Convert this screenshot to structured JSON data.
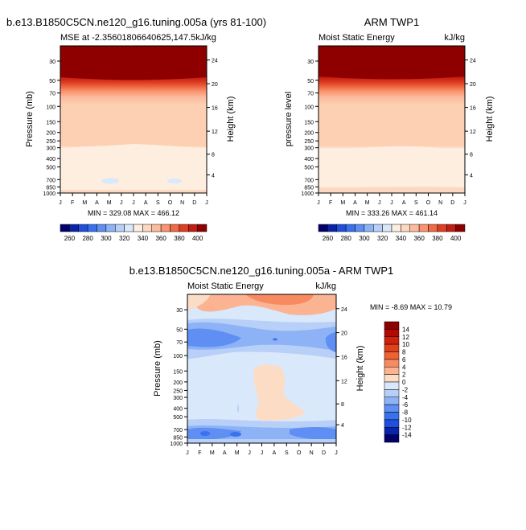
{
  "figure": {
    "panels": [
      {
        "id": "model",
        "main_title": "b.e13.B1850C5CN.ne120_g16.tuning.005a (yrs 81-100)",
        "left_string": "MSE at -2.35601806640625,147.5kJ/kg",
        "right_string": "",
        "ylabel": "Pressure (mb)",
        "ylabel_right": "Height (km)",
        "minmax": "MIN = 329.08 MAX = 466.12"
      },
      {
        "id": "obs",
        "main_title": "ARM TWP1",
        "left_string": "Moist Static Energy",
        "right_string": "kJ/kg",
        "ylabel": "pressure level",
        "ylabel_right": "Height (km)",
        "minmax": "MIN = 333.26 MAX = 461.14"
      },
      {
        "id": "diff",
        "main_title": "b.e13.B1850C5CN.ne120_g16.tuning.005a - ARM TWP1",
        "left_string": "Moist Static Energy",
        "right_string": "kJ/kg",
        "ylabel": "Pressure (mb)",
        "ylabel_right": "Height (km)",
        "minmax": "MIN =  -8.69 MAX =  10.79"
      }
    ]
  },
  "chart_data": [
    {
      "type": "heatmap",
      "title": "b.e13.B1850C5CN.ne120_g16.tuning.005a (yrs 81-100)",
      "subtitle": "MSE at -2.35601806640625,147.5kJ/kg",
      "xlabel": "",
      "ylabel": "Pressure (mb)",
      "ylabel_right": "Height (km)",
      "x_ticks": [
        "J",
        "F",
        "M",
        "A",
        "M",
        "J",
        "J",
        "A",
        "S",
        "O",
        "N",
        "D",
        "J"
      ],
      "y_ticks": [
        30,
        50,
        70,
        100,
        150,
        200,
        250,
        300,
        400,
        500,
        700,
        850,
        1000
      ],
      "y_right_ticks": [
        24,
        20,
        16,
        12,
        8,
        4
      ],
      "ylim": [
        1000,
        20
      ],
      "min": 329.08,
      "max": 466.12,
      "colorbar_labels": [
        260,
        280,
        300,
        320,
        340,
        360,
        380,
        400
      ],
      "colorbar_colors": [
        "#03006b",
        "#0a24a8",
        "#1f4fdc",
        "#3a72ee",
        "#5f8ff3",
        "#8db3f6",
        "#b8d0f8",
        "#dae8fb",
        "#fdeee0",
        "#fdd8c0",
        "#fcbb9d",
        "#fa9470",
        "#f06a46",
        "#de3f22",
        "#c21d12",
        "#8e0000"
      ],
      "profile": [
        {
          "pressure": 20,
          "value": 460
        },
        {
          "pressure": 45,
          "value": 405
        },
        {
          "pressure": 60,
          "value": 385
        },
        {
          "pressure": 80,
          "value": 370
        },
        {
          "pressure": 100,
          "value": 352
        },
        {
          "pressure": 300,
          "value": 345
        },
        {
          "pressure": 850,
          "value": 338
        },
        {
          "pressure": 1000,
          "value": 345
        }
      ]
    },
    {
      "type": "heatmap",
      "title": "ARM TWP1",
      "subtitle": "Moist Static Energy",
      "units": "kJ/kg",
      "ylabel": "pressure level",
      "ylabel_right": "Height (km)",
      "x_ticks": [
        "J",
        "F",
        "M",
        "A",
        "M",
        "J",
        "J",
        "A",
        "S",
        "O",
        "N",
        "D",
        "J"
      ],
      "y_ticks": [
        30,
        50,
        70,
        100,
        150,
        200,
        250,
        300,
        400,
        500,
        700,
        850,
        1000
      ],
      "y_right_ticks": [
        24,
        20,
        16,
        12,
        8,
        4
      ],
      "ylim": [
        1000,
        20
      ],
      "min": 333.26,
      "max": 461.14,
      "colorbar_labels": [
        260,
        280,
        300,
        320,
        340,
        360,
        380,
        400
      ],
      "colorbar_colors": [
        "#03006b",
        "#0a24a8",
        "#1f4fdc",
        "#3a72ee",
        "#5f8ff3",
        "#8db3f6",
        "#b8d0f8",
        "#dae8fb",
        "#fdeee0",
        "#fdd8c0",
        "#fcbb9d",
        "#fa9470",
        "#f06a46",
        "#de3f22",
        "#c21d12",
        "#8e0000"
      ],
      "profile": [
        {
          "pressure": 20,
          "value": 455
        },
        {
          "pressure": 45,
          "value": 400
        },
        {
          "pressure": 60,
          "value": 382
        },
        {
          "pressure": 80,
          "value": 368
        },
        {
          "pressure": 100,
          "value": 352
        },
        {
          "pressure": 300,
          "value": 344
        },
        {
          "pressure": 850,
          "value": 338
        },
        {
          "pressure": 1000,
          "value": 345
        }
      ]
    },
    {
      "type": "heatmap",
      "title": "b.e13.B1850C5CN.ne120_g16.tuning.005a - ARM TWP1",
      "subtitle": "Moist Static Energy",
      "units": "kJ/kg",
      "ylabel": "Pressure (mb)",
      "ylabel_right": "Height (km)",
      "x_ticks": [
        "J",
        "F",
        "M",
        "A",
        "M",
        "J",
        "J",
        "A",
        "S",
        "O",
        "N",
        "D",
        "J"
      ],
      "y_ticks": [
        30,
        50,
        70,
        100,
        150,
        200,
        250,
        300,
        400,
        500,
        700,
        850,
        1000
      ],
      "y_right_ticks": [
        24,
        20,
        16,
        12,
        8,
        4
      ],
      "ylim": [
        1000,
        20
      ],
      "min": -8.69,
      "max": 10.79,
      "colorbar_labels": [
        14,
        12,
        10,
        8,
        6,
        4,
        2,
        0,
        -2,
        -4,
        -6,
        -8,
        -10,
        -12,
        -14
      ],
      "colorbar_colors": [
        "#8e0000",
        "#b00a05",
        "#cc220e",
        "#e0401c",
        "#ee6236",
        "#f78a60",
        "#fbb391",
        "#fddcc6",
        "#dae8fb",
        "#b8d0f8",
        "#8db3f6",
        "#5f8ff3",
        "#3a72ee",
        "#1f4fdc",
        "#0a24a8",
        "#03006b"
      ],
      "features": [
        {
          "pressure": 30,
          "value": 6,
          "description_months": "Jun-Oct"
        },
        {
          "pressure": 85,
          "value": -6,
          "description_months": "Jan-Apr"
        },
        {
          "pressure": 300,
          "value": 1,
          "description_months": "Jul-Sep"
        },
        {
          "pressure": 800,
          "value": -6,
          "description_months": "Jan-May, Oct-Dec"
        }
      ]
    }
  ]
}
